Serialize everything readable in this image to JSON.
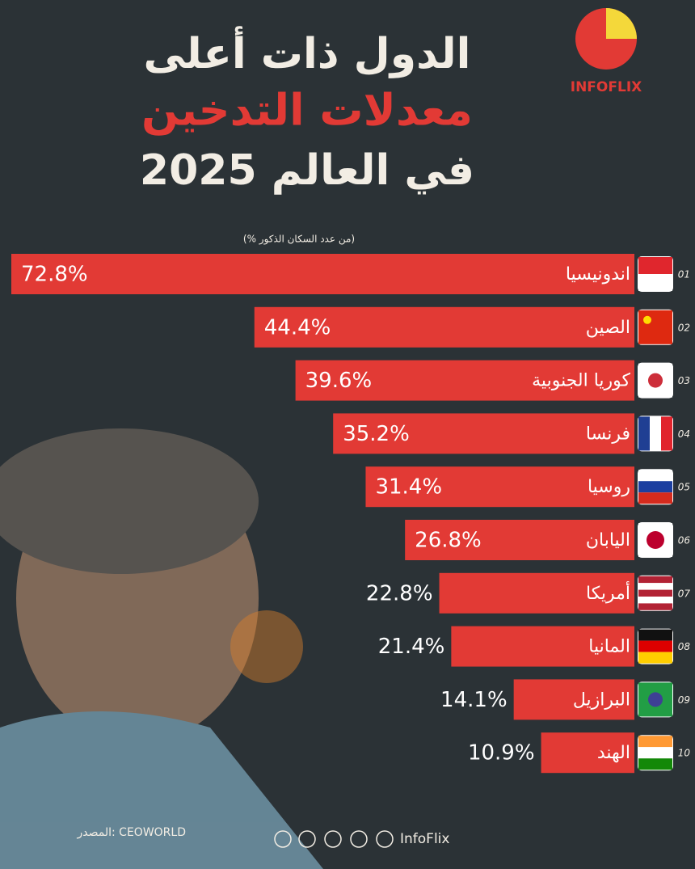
{
  "chart_data": {
    "type": "bar",
    "title_lines": [
      "الدول ذات أعلى",
      "معدلات التدخين",
      "في العالم 2025"
    ],
    "subtitle": "(% من عدد السكان الذكور)",
    "logo": "INFOFLIX",
    "ranks": [
      "01",
      "02",
      "03",
      "04",
      "05",
      "06",
      "07",
      "08",
      "09",
      "10"
    ],
    "categories": [
      "اندونيسيا",
      "الصين",
      "كوريا الجنوبية",
      "فرنسا",
      "روسيا",
      "اليابان",
      "أمريكا",
      "المانيا",
      "البرازيل",
      "الهند"
    ],
    "values": [
      72.8,
      44.4,
      39.6,
      35.2,
      31.4,
      26.8,
      22.8,
      21.4,
      14.1,
      10.9
    ],
    "value_labels": [
      "72.8%",
      "44.4%",
      "39.6%",
      "35.2%",
      "31.4%",
      "26.8%",
      "22.8%",
      "21.4%",
      "14.1%",
      "10.9%"
    ],
    "color": "#e23a35",
    "source": "المصدر: CEOWORLD",
    "social": "InfoFlix"
  }
}
